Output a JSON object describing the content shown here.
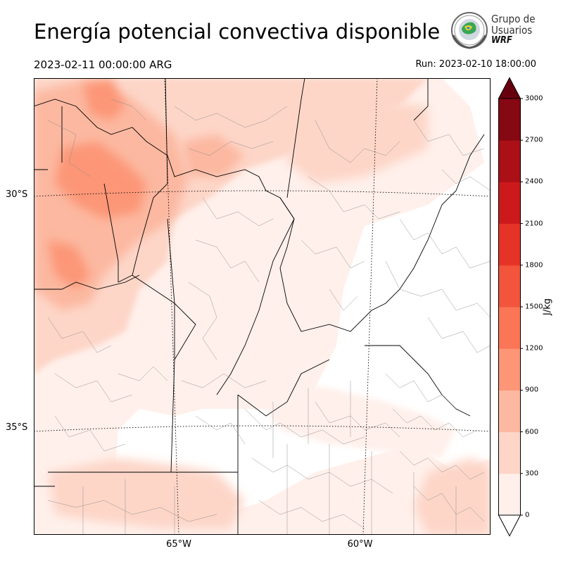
{
  "header": {
    "title": "Energía potencial convectiva disponible",
    "valid_time": "2023-02-11 00:00:00 ARG",
    "run_time": "Run: 2023-02-10 18:00:00"
  },
  "logo": {
    "line1": "Grupo de",
    "line2": "Usuarios",
    "line3": "WRF"
  },
  "map": {
    "lat_labels": [
      {
        "text": "30°S",
        "lat": -30
      },
      {
        "text": "35°S",
        "lat": -35
      }
    ],
    "lon_labels": [
      {
        "text": "65°W",
        "lon": -65
      },
      {
        "text": "60°W",
        "lon": -60
      }
    ]
  },
  "colorbar": {
    "unit": "J/kg",
    "ticks": [
      "0",
      "300",
      "600",
      "900",
      "1200",
      "1500",
      "1800",
      "2100",
      "2400",
      "2700",
      "3000"
    ],
    "colors": [
      "#fff0eb",
      "#fdd6c8",
      "#fcb8a0",
      "#fc9677",
      "#fb7656",
      "#f2553c",
      "#e63328",
      "#cc1a1c",
      "#ab1017",
      "#850812"
    ],
    "over_color": "#67000d"
  }
}
